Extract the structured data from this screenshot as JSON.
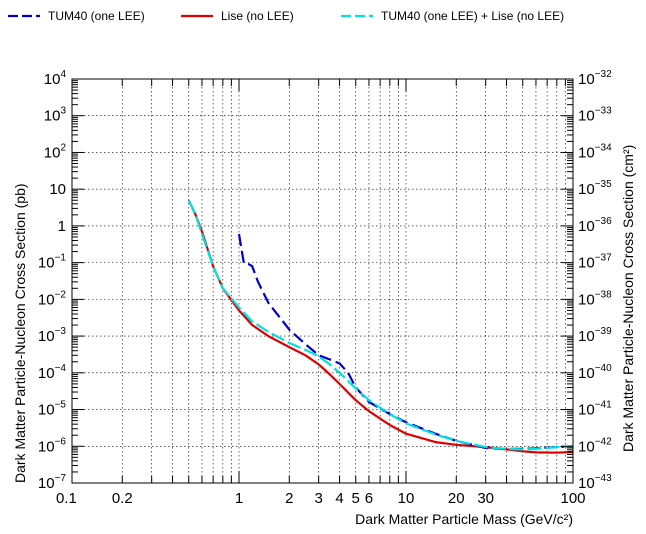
{
  "chart_data": {
    "type": "line",
    "title": "",
    "xlabel": "Dark Matter Particle Mass (GeV/c²)",
    "ylabel_left": "Dark Matter Particle-Nucleon Cross Section (pb)",
    "ylabel_right": "Dark Matter Particle-Nucleon Cross Section (cm²)",
    "x_scale": "log",
    "y_scale": "log",
    "xlim": [
      0.1,
      100
    ],
    "ylim_pb": [
      1e-07,
      10000.0
    ],
    "ylim_cm2": [
      1e-43,
      1e-32
    ],
    "grid": true,
    "legend_position": "top",
    "x_tick_labels": [
      {
        "value": 0.1,
        "label": "0.1"
      },
      {
        "value": 0.2,
        "label": "0.2"
      },
      {
        "value": 1,
        "label": "1"
      },
      {
        "value": 2,
        "label": "2"
      },
      {
        "value": 3,
        "label": "3"
      },
      {
        "value": 4,
        "label": "4"
      },
      {
        "value": 5,
        "label": "5"
      },
      {
        "value": 6,
        "label": "6"
      },
      {
        "value": 10,
        "label": "10"
      },
      {
        "value": 20,
        "label": "20"
      },
      {
        "value": 30,
        "label": "30"
      },
      {
        "value": 100,
        "label": "100"
      }
    ],
    "y_left_tick_exponents": [
      -7,
      -6,
      -5,
      -4,
      -3,
      -2,
      -1,
      0,
      1,
      2,
      3,
      4
    ],
    "y_left_tick_labels": [
      {
        "exp": -7,
        "base": "10",
        "sup": "−7"
      },
      {
        "exp": -6,
        "base": "10",
        "sup": "−6"
      },
      {
        "exp": -5,
        "base": "10",
        "sup": "−5"
      },
      {
        "exp": -4,
        "base": "10",
        "sup": "−4"
      },
      {
        "exp": -3,
        "base": "10",
        "sup": "−3"
      },
      {
        "exp": -2,
        "base": "10",
        "sup": "−2"
      },
      {
        "exp": -1,
        "base": "10",
        "sup": "−1"
      },
      {
        "exp": 0,
        "base": "1",
        "sup": ""
      },
      {
        "exp": 1,
        "base": "10",
        "sup": ""
      },
      {
        "exp": 2,
        "base": "10",
        "sup": "2"
      },
      {
        "exp": 3,
        "base": "10",
        "sup": "3"
      },
      {
        "exp": 4,
        "base": "10",
        "sup": "4"
      }
    ],
    "y_right_tick_labels": [
      {
        "exp": -43,
        "base": "10",
        "sup": "−43"
      },
      {
        "exp": -42,
        "base": "10",
        "sup": "−42"
      },
      {
        "exp": -41,
        "base": "10",
        "sup": "−41"
      },
      {
        "exp": -40,
        "base": "10",
        "sup": "−40"
      },
      {
        "exp": -39,
        "base": "10",
        "sup": "−39"
      },
      {
        "exp": -38,
        "base": "10",
        "sup": "−38"
      },
      {
        "exp": -37,
        "base": "10",
        "sup": "−37"
      },
      {
        "exp": -36,
        "base": "10",
        "sup": "−36"
      },
      {
        "exp": -35,
        "base": "10",
        "sup": "−35"
      },
      {
        "exp": -34,
        "base": "10",
        "sup": "−34"
      },
      {
        "exp": -33,
        "base": "10",
        "sup": "−33"
      },
      {
        "exp": -32,
        "base": "10",
        "sup": "−32"
      }
    ],
    "series": [
      {
        "name": "TUM40 (one LEE)",
        "color": "#0000cc",
        "style": "dashed",
        "x": [
          1.0,
          1.07,
          1.15,
          1.2,
          1.3,
          1.5,
          2.0,
          2.5,
          3.0,
          3.5,
          4.0,
          4.5,
          5.0,
          6.0,
          8.0,
          10.0,
          15.0,
          20.0,
          30.0,
          40.0,
          50.0,
          60.0,
          80.0,
          100.0
        ],
        "y": [
          0.6,
          0.095,
          0.09,
          0.08,
          0.03,
          0.008,
          0.0015,
          0.0006,
          0.0003,
          0.00023,
          0.00018,
          0.0001,
          4e-05,
          1.6e-05,
          7.5e-06,
          4.5e-06,
          2.2e-06,
          1.4e-06,
          9e-07,
          8.5e-07,
          8.5e-07,
          8.8e-07,
          9.5e-07,
          1e-06
        ]
      },
      {
        "name": "Lise (no LEE)",
        "color": "#dd0000",
        "style": "solid",
        "x": [
          0.5,
          0.55,
          0.6,
          0.7,
          0.8,
          1.0,
          1.2,
          1.5,
          2.0,
          2.5,
          3.0,
          3.5,
          4.0,
          5.0,
          6.0,
          8.0,
          10.0,
          15.0,
          20.0,
          30.0,
          40.0,
          50.0,
          60.0,
          80.0,
          100.0
        ],
        "y": [
          5.0,
          2.0,
          0.7,
          0.08,
          0.02,
          0.005,
          0.002,
          0.001,
          0.0005,
          0.0003,
          0.00017,
          9e-05,
          5e-05,
          1.8e-05,
          9e-06,
          3.8e-06,
          2.2e-06,
          1.3e-06,
          1.1e-06,
          9.5e-07,
          8.2e-07,
          7.3e-07,
          6.8e-07,
          6.7e-07,
          7e-07
        ]
      },
      {
        "name": "TUM40 (one LEE) + Lise (no LEE)",
        "color": "#00e0e0",
        "style": "dashed",
        "x": [
          0.5,
          0.55,
          0.6,
          0.7,
          0.8,
          1.0,
          1.2,
          1.5,
          2.0,
          2.5,
          3.0,
          3.5,
          4.0,
          5.0,
          6.0,
          8.0,
          10.0,
          15.0,
          20.0,
          30.0,
          40.0,
          50.0,
          60.0,
          80.0,
          100.0
        ],
        "y": [
          5.0,
          2.0,
          0.6,
          0.08,
          0.02,
          0.006,
          0.0025,
          0.0013,
          0.00065,
          0.00042,
          0.00028,
          0.00017,
          0.0001,
          3.8e-05,
          1.8e-05,
          7.5e-06,
          4.2e-06,
          2.1e-06,
          1.4e-06,
          9.5e-07,
          8.5e-07,
          8.2e-07,
          8.5e-07,
          9.5e-07,
          1e-06
        ]
      }
    ]
  }
}
